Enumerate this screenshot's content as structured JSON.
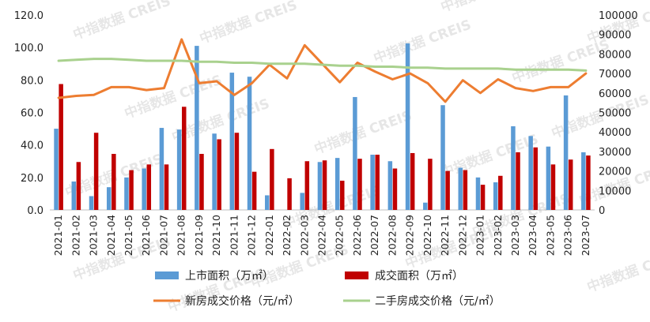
{
  "chart_data": {
    "type": "bar",
    "categories": [
      "2021-01",
      "2021-02",
      "2021-03",
      "2021-04",
      "2021-05",
      "2021-06",
      "2021-07",
      "2021-08",
      "2021-09",
      "2021-10",
      "2021-11",
      "2021-12",
      "2022-01",
      "2022-02",
      "2022-03",
      "2022-04",
      "2022-05",
      "2022-06",
      "2022-07",
      "2022-08",
      "2022-09",
      "2022-10",
      "2022-11",
      "2022-12",
      "2023-01",
      "2023-02",
      "2023-03",
      "2023-04",
      "2023-05",
      "2023-06",
      "2023-07"
    ],
    "series": [
      {
        "name": "上市面积（万㎡）",
        "type": "bar",
        "axis": "left",
        "color": "#5b9bd5",
        "values": [
          50,
          17.5,
          8.5,
          14,
          20,
          25.5,
          50.5,
          49.5,
          101,
          47,
          84.5,
          82,
          9,
          0,
          10.5,
          29.5,
          32,
          69.5,
          34,
          30,
          102.5,
          4.5,
          64.5,
          26,
          20,
          17,
          51.5,
          45.5,
          39,
          70.5,
          35.5
        ]
      },
      {
        "name": "成交面积（万㎡）",
        "type": "bar",
        "axis": "left",
        "color": "#c00000",
        "values": [
          77.5,
          29.5,
          47.5,
          34.5,
          24.5,
          28,
          28,
          63.5,
          34.5,
          43.5,
          47.5,
          23.5,
          37.5,
          19.5,
          30,
          30.5,
          18,
          31.5,
          34,
          25.5,
          35,
          31.5,
          24,
          24.5,
          15.5,
          21,
          35.5,
          38.5,
          28,
          31,
          33.5
        ]
      },
      {
        "name": "新房成交价格（元/㎡）",
        "type": "line",
        "axis": "right",
        "color": "#ed7d31",
        "values": [
          57500,
          58500,
          59000,
          63000,
          63000,
          61500,
          62500,
          87500,
          65000,
          66000,
          59000,
          65000,
          74500,
          67500,
          84500,
          75000,
          65500,
          75500,
          71000,
          67000,
          70000,
          65000,
          55500,
          66500,
          60000,
          67000,
          62500,
          61000,
          63000,
          63000,
          70000
        ]
      },
      {
        "name": "二手房成交价格（元/㎡）",
        "type": "line",
        "axis": "right",
        "color": "#a9d18e",
        "values": [
          76500,
          77000,
          77500,
          77500,
          77000,
          76500,
          76500,
          76500,
          76000,
          76000,
          75500,
          75500,
          75000,
          75000,
          75000,
          74500,
          74000,
          74000,
          73500,
          73500,
          73000,
          73000,
          72500,
          72500,
          72500,
          72500,
          72000,
          72000,
          72000,
          72000,
          71500
        ]
      }
    ],
    "ylim_left": [
      0,
      120
    ],
    "ylim_right": [
      0,
      100000
    ],
    "yticks_left": [
      "0.0",
      "20.0",
      "40.0",
      "60.0",
      "80.0",
      "100.0",
      "120.0"
    ],
    "yticks_right": [
      "0",
      "10000",
      "20000",
      "30000",
      "40000",
      "50000",
      "60000",
      "70000",
      "80000",
      "90000",
      "100000"
    ],
    "grid": false,
    "legend_position": "bottom"
  },
  "watermark": "中指数据 CREIS"
}
